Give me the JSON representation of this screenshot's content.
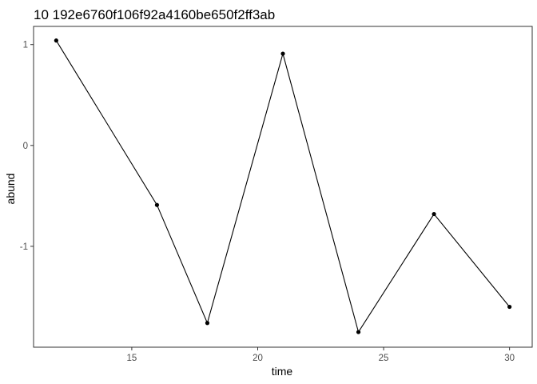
{
  "chart_data": {
    "type": "line",
    "title": "10 192e6760f106f92a4160be650f2ff3ab",
    "xlabel": "time",
    "ylabel": "abund",
    "x": [
      12,
      16,
      18,
      21,
      24,
      27,
      30
    ],
    "y": [
      1.04,
      -0.59,
      -1.76,
      0.91,
      -1.85,
      -0.68,
      -1.6
    ],
    "xticks": [
      15,
      20,
      25,
      30
    ],
    "yticks": [
      1,
      0,
      -1
    ],
    "xlim": [
      11.1,
      30.9
    ],
    "ylim": [
      -2.0,
      1.18
    ],
    "grid": false,
    "legend": "none",
    "colors": {
      "line": "#000000",
      "point": "#000000",
      "frame": "#333333",
      "tick_text": "#4d4d4d"
    }
  }
}
